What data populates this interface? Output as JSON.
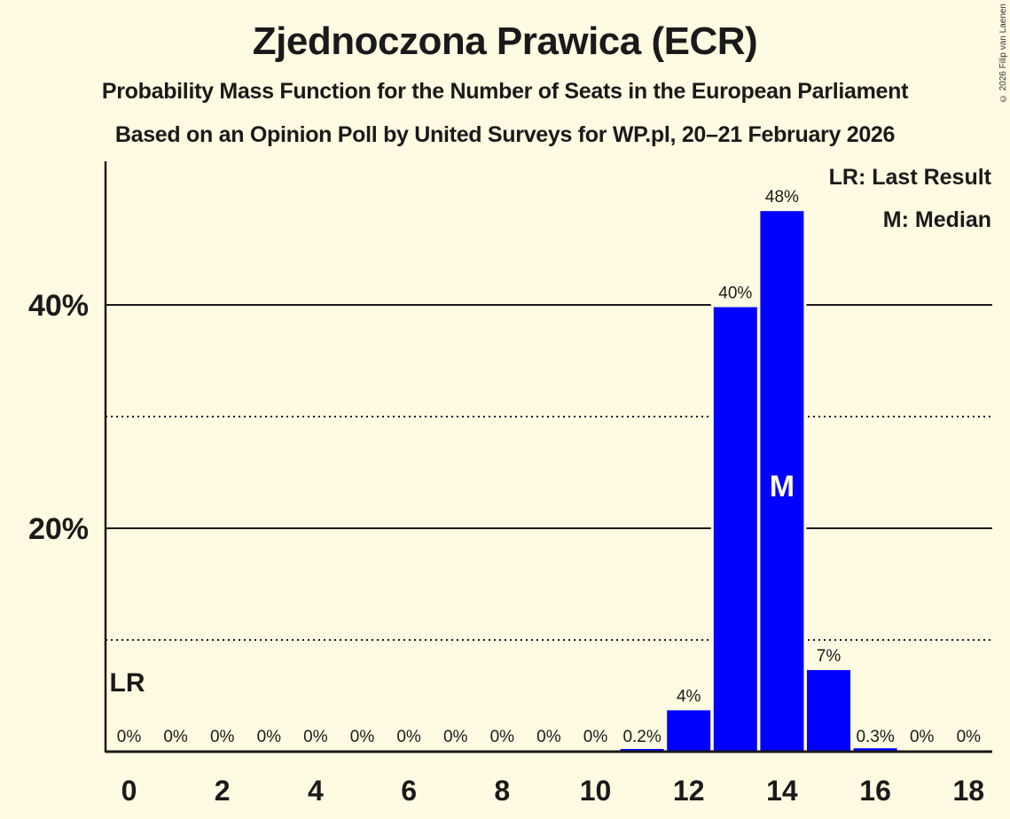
{
  "header": {
    "title": "Zjednoczona Prawica (ECR)",
    "subtitle": "Probability Mass Function for the Number of Seats in the European Parliament",
    "source": "Based on an Opinion Poll by United Surveys for WP.pl, 20–21 February 2026",
    "copyright": "© 2026 Filip van Laenen"
  },
  "legend": {
    "lr": "LR: Last Result",
    "m": "M: Median"
  },
  "markers": {
    "last_result_label": "LR",
    "last_result_seat": 0,
    "median_label": "M",
    "median_seat": 14
  },
  "colors": {
    "background": "#fffae2",
    "bar": "#0000ff",
    "text": "#1a1a1a"
  },
  "chart_data": {
    "type": "bar",
    "title": "Zjednoczona Prawica (ECR)",
    "subtitle": "Probability Mass Function for the Number of Seats in the European Parliament",
    "xlabel": "",
    "ylabel": "",
    "categories": [
      0,
      1,
      2,
      3,
      4,
      5,
      6,
      7,
      8,
      9,
      10,
      11,
      12,
      13,
      14,
      15,
      16,
      17,
      18
    ],
    "values": [
      0,
      0,
      0,
      0,
      0,
      0,
      0,
      0,
      0,
      0,
      0,
      0.2,
      3.7,
      39.8,
      48.4,
      7.3,
      0.3,
      0,
      0
    ],
    "labels": [
      "0%",
      "0%",
      "0%",
      "0%",
      "0%",
      "0%",
      "0%",
      "0%",
      "0%",
      "0%",
      "0%",
      "0.2%",
      "4%",
      "40%",
      "48%",
      "7%",
      "0.3%",
      "0%",
      "0%"
    ],
    "x_tick_labels": [
      "0",
      "2",
      "4",
      "6",
      "8",
      "10",
      "12",
      "14",
      "16",
      "18"
    ],
    "y_tick_labels": [
      "20%",
      "40%"
    ],
    "ylim": [
      0,
      52
    ],
    "grid": {
      "major": [
        20,
        40
      ],
      "minor": [
        10,
        30
      ]
    },
    "legend": [
      "LR: Last Result",
      "M: Median"
    ],
    "annotations": [
      {
        "text": "LR",
        "x": 0
      },
      {
        "text": "M",
        "x": 14
      }
    ]
  }
}
